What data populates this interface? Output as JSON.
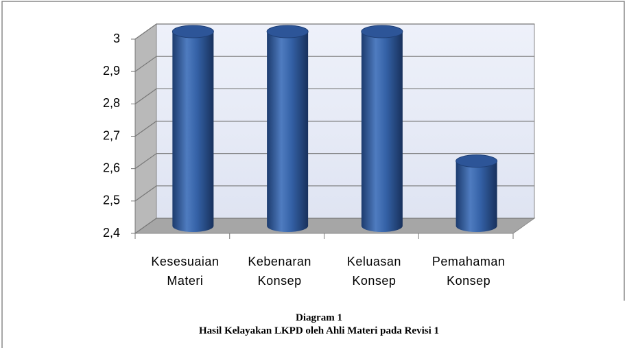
{
  "chart_data": {
    "type": "bar",
    "categories": [
      "Kesesuaian Materi",
      "Kebenaran Konsep",
      "Keluasan Konsep",
      "Pemahaman Konsep"
    ],
    "values": [
      3,
      3,
      3,
      2.6
    ],
    "color": "#2f5597",
    "ylim": [
      2.4,
      3
    ],
    "yticks": [
      {
        "value": 2.4,
        "label": "2,4"
      },
      {
        "value": 2.5,
        "label": "2,5"
      },
      {
        "value": 2.6,
        "label": "2,6"
      },
      {
        "value": 2.7,
        "label": "2,7"
      },
      {
        "value": 2.8,
        "label": "2,8"
      },
      {
        "value": 2.9,
        "label": "2,9"
      },
      3
    ],
    "grid": true,
    "caption": {
      "title": "Diagram 1",
      "subtitle": "Hasil Kelayakan LKPD oleh Ahli Materi pada Revisi 1"
    }
  }
}
